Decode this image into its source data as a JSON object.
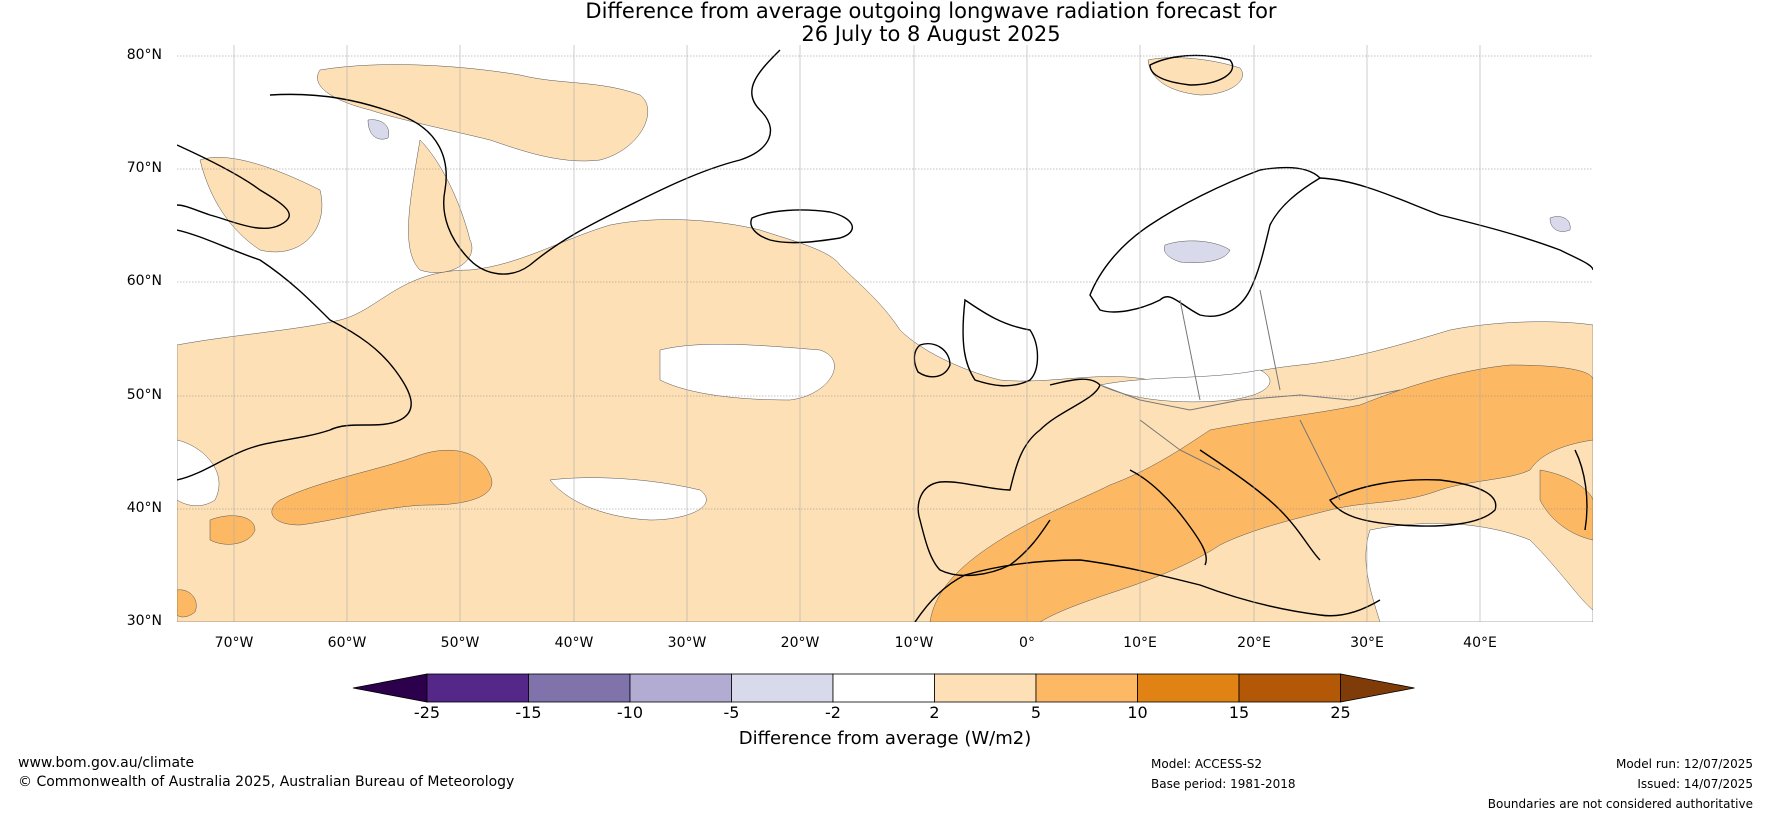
{
  "title": {
    "line1": "Difference from average outgoing longwave radiation forecast for",
    "line2": "26 July to 8 August 2025"
  },
  "map": {
    "projection": "plate carree",
    "extent": {
      "lon_min": -75,
      "lon_max": 50,
      "lat_min": 30,
      "lat_max": 81
    },
    "lat_ticks": [
      "80°N",
      "70°N",
      "60°N",
      "50°N",
      "40°N",
      "30°N"
    ],
    "lon_ticks": [
      "70°W",
      "60°W",
      "50°W",
      "40°W",
      "30°W",
      "20°W",
      "10°W",
      "0°",
      "10°E",
      "20°E",
      "30°E",
      "40°E"
    ],
    "gridlines": true
  },
  "colorbar": {
    "label": "Difference from average (W/m2)",
    "ticks": [
      "-25",
      "-15",
      "-10",
      "-5",
      "-2",
      "2",
      "5",
      "10",
      "15",
      "25"
    ],
    "colors": [
      "#2d004b",
      "#542788",
      "#8073ac",
      "#b2abd2",
      "#d8daeb",
      "#ffffff",
      "#fee0b6",
      "#fdb863",
      "#e08214",
      "#b35806",
      "#7f3b08"
    ],
    "extend": "both"
  },
  "footer": {
    "website": "www.bom.gov.au/climate",
    "copyright": "© Commonwealth of Australia 2025, Australian Bureau of Meteorology",
    "model": "Model: ACCESS-S2",
    "base_period": "Base period: 1981-2018",
    "model_run": "Model run: 12/07/2025",
    "issued": "Issued: 14/07/2025",
    "disclaimer": "Boundaries are not considered authoritative"
  }
}
